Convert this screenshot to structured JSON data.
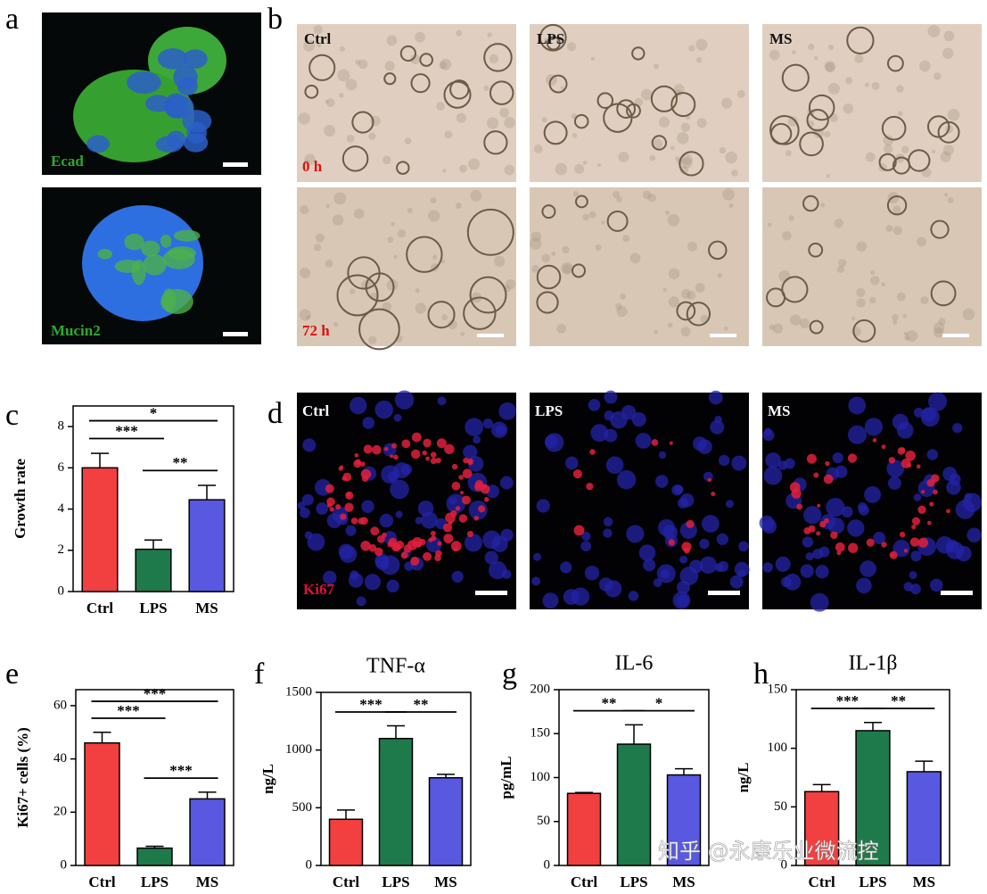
{
  "panels": [
    "a",
    "b",
    "c",
    "d",
    "e",
    "f",
    "g",
    "h"
  ],
  "images": {
    "a": [
      "Ecad",
      "Mucin2"
    ],
    "b": {
      "columns": [
        "Ctrl",
        "LPS",
        "MS"
      ],
      "rows": [
        "0 h",
        "72 h"
      ]
    },
    "d": {
      "columns": [
        "Ctrl",
        "LPS",
        "MS"
      ],
      "marker": "Ki67"
    }
  },
  "watermark": "知乎 @永康乐业微流控",
  "chart_data": [
    {
      "type": "bar",
      "ylabel": "Growth rate",
      "categories": [
        "Ctrl",
        "LPS",
        "MS"
      ],
      "values": [
        6.0,
        2.05,
        4.45
      ],
      "errors": [
        0.7,
        0.45,
        0.7
      ],
      "colors": [
        "#f23f3f",
        "#1f7a4b",
        "#5858e0"
      ],
      "ylim": [
        0,
        9
      ],
      "yticks": [
        0,
        2,
        4,
        6,
        8
      ],
      "significance": [
        {
          "from": 0,
          "to": 1,
          "label": "***"
        },
        {
          "from": 1,
          "to": 2,
          "label": "**"
        },
        {
          "from": 0,
          "to": 2,
          "label": "*"
        }
      ]
    },
    {
      "type": "bar",
      "ylabel": "Ki67+ cells (%)",
      "categories": [
        "Ctrl",
        "LPS",
        "MS"
      ],
      "values": [
        46,
        6.5,
        25
      ],
      "errors": [
        4,
        0.7,
        2.5
      ],
      "colors": [
        "#f23f3f",
        "#1f7a4b",
        "#5858e0"
      ],
      "ylim": [
        0,
        66
      ],
      "yticks": [
        0,
        20,
        40,
        60
      ],
      "significance": [
        {
          "from": 0,
          "to": 1,
          "label": "***"
        },
        {
          "from": 1,
          "to": 2,
          "label": "***"
        },
        {
          "from": 0,
          "to": 2,
          "label": "***"
        }
      ]
    },
    {
      "type": "bar",
      "title": "TNF-α",
      "ylabel": "ng/L",
      "categories": [
        "Ctrl",
        "LPS",
        "MS"
      ],
      "values": [
        400,
        1100,
        760
      ],
      "errors": [
        80,
        110,
        30
      ],
      "colors": [
        "#f23f3f",
        "#1f7a4b",
        "#5858e0"
      ],
      "ylim": [
        0,
        1500
      ],
      "yticks": [
        0,
        500,
        1000,
        1500
      ],
      "significance": [
        {
          "from": 0,
          "to": 1,
          "label": "***"
        },
        {
          "from": 1,
          "to": 2,
          "label": "**"
        }
      ]
    },
    {
      "type": "bar",
      "title": "IL-6",
      "ylabel": "pg/mL",
      "categories": [
        "Ctrl",
        "LPS",
        "MS"
      ],
      "values": [
        82,
        138,
        103
      ],
      "errors": [
        1,
        22,
        7
      ],
      "colors": [
        "#f23f3f",
        "#1f7a4b",
        "#5858e0"
      ],
      "ylim": [
        0,
        200
      ],
      "yticks": [
        0,
        50,
        100,
        150,
        200
      ],
      "significance": [
        {
          "from": 0,
          "to": 1,
          "label": "**"
        },
        {
          "from": 1,
          "to": 2,
          "label": "*"
        }
      ]
    },
    {
      "type": "bar",
      "title": "IL-1β",
      "ylabel": "ng/L",
      "categories": [
        "Ctrl",
        "LPS",
        "MS"
      ],
      "values": [
        63,
        115,
        80
      ],
      "errors": [
        6,
        7,
        9
      ],
      "colors": [
        "#f23f3f",
        "#1f7a4b",
        "#5858e0"
      ],
      "ylim": [
        0,
        150
      ],
      "yticks": [
        0,
        50,
        100,
        150
      ],
      "significance": [
        {
          "from": 0,
          "to": 1,
          "label": "***"
        },
        {
          "from": 1,
          "to": 2,
          "label": "**"
        }
      ]
    }
  ]
}
